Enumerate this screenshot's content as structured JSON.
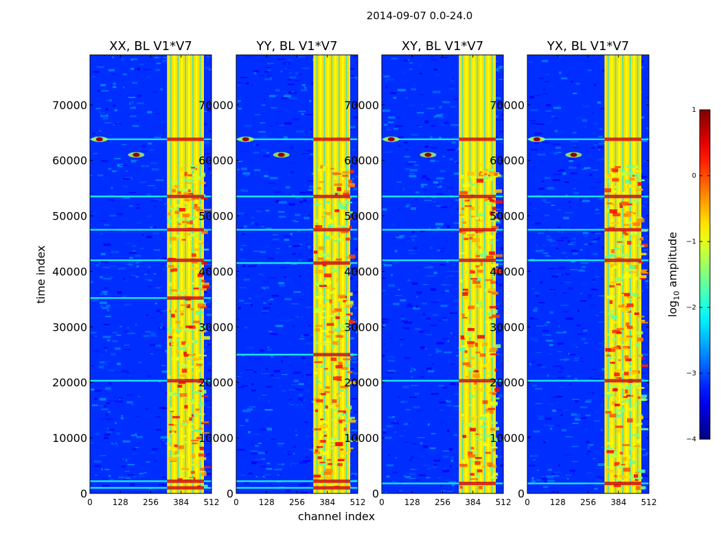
{
  "figure_title": "2014-09-07 0.0-24.0",
  "chart_data": [
    {
      "type": "heatmap",
      "title": "XX, BL V1*V7",
      "xlabel": "channel index",
      "ylabel": "time index",
      "x_range": [
        0,
        512
      ],
      "y_range": [
        0,
        79000
      ],
      "x_ticks": [
        "0",
        "128",
        "256",
        "384",
        "512"
      ],
      "y_ticks": [
        "0",
        "10000",
        "20000",
        "30000",
        "40000",
        "50000",
        "60000",
        "70000"
      ],
      "strong_channel_band": [
        325,
        480
      ],
      "horizontal_features": [
        1000,
        2200,
        20300,
        35200,
        42000,
        47500,
        53500,
        63800
      ],
      "burst_events": [
        {
          "channel": 40,
          "time": 63800
        },
        {
          "channel": 195,
          "time": 61000
        }
      ]
    },
    {
      "type": "heatmap",
      "title": "YY, BL V1*V7",
      "xlabel": "",
      "ylabel": "",
      "x_range": [
        0,
        512
      ],
      "y_range": [
        0,
        79000
      ],
      "x_ticks": [
        "0",
        "128",
        "256",
        "384",
        "512"
      ],
      "y_ticks": [
        "0",
        "10000",
        "20000",
        "30000",
        "40000",
        "50000",
        "60000",
        "70000"
      ],
      "strong_channel_band": [
        325,
        480
      ],
      "horizontal_features": [
        1000,
        2200,
        25000,
        41500,
        47500,
        53500,
        63800
      ],
      "burst_events": [
        {
          "channel": 40,
          "time": 63800
        },
        {
          "channel": 190,
          "time": 61000
        }
      ]
    },
    {
      "type": "heatmap",
      "title": "XY, BL V1*V7",
      "xlabel": "",
      "ylabel": "",
      "x_range": [
        0,
        512
      ],
      "y_range": [
        0,
        79000
      ],
      "x_ticks": [
        "0",
        "128",
        "256",
        "384",
        "512"
      ],
      "y_ticks": [
        "0",
        "10000",
        "20000",
        "30000",
        "40000",
        "50000",
        "60000",
        "70000"
      ],
      "strong_channel_band": [
        325,
        480
      ],
      "horizontal_features": [
        1800,
        20300,
        42000,
        47500,
        53500,
        63800
      ],
      "burst_events": [
        {
          "channel": 40,
          "time": 63800
        },
        {
          "channel": 195,
          "time": 61000
        }
      ]
    },
    {
      "type": "heatmap",
      "title": "YX, BL V1*V7",
      "xlabel": "",
      "ylabel": "",
      "x_range": [
        0,
        512
      ],
      "y_range": [
        0,
        79000
      ],
      "x_ticks": [
        "0",
        "128",
        "256",
        "384",
        "512"
      ],
      "y_ticks": [
        "0",
        "10000",
        "20000",
        "30000",
        "40000",
        "50000",
        "60000",
        "70000"
      ],
      "strong_channel_band": [
        325,
        480
      ],
      "horizontal_features": [
        1800,
        20300,
        42000,
        47500,
        53500,
        63800
      ],
      "burst_events": [
        {
          "channel": 40,
          "time": 63800
        },
        {
          "channel": 195,
          "time": 61000
        }
      ]
    }
  ],
  "colorbar": {
    "label_prefix": "log",
    "label_sub": "10",
    "label_suffix": " amplitude",
    "range": [
      -4,
      1
    ],
    "ticks": [
      "1",
      "0",
      "−1",
      "−2",
      "−3",
      "−4"
    ],
    "colormap": "jet"
  }
}
